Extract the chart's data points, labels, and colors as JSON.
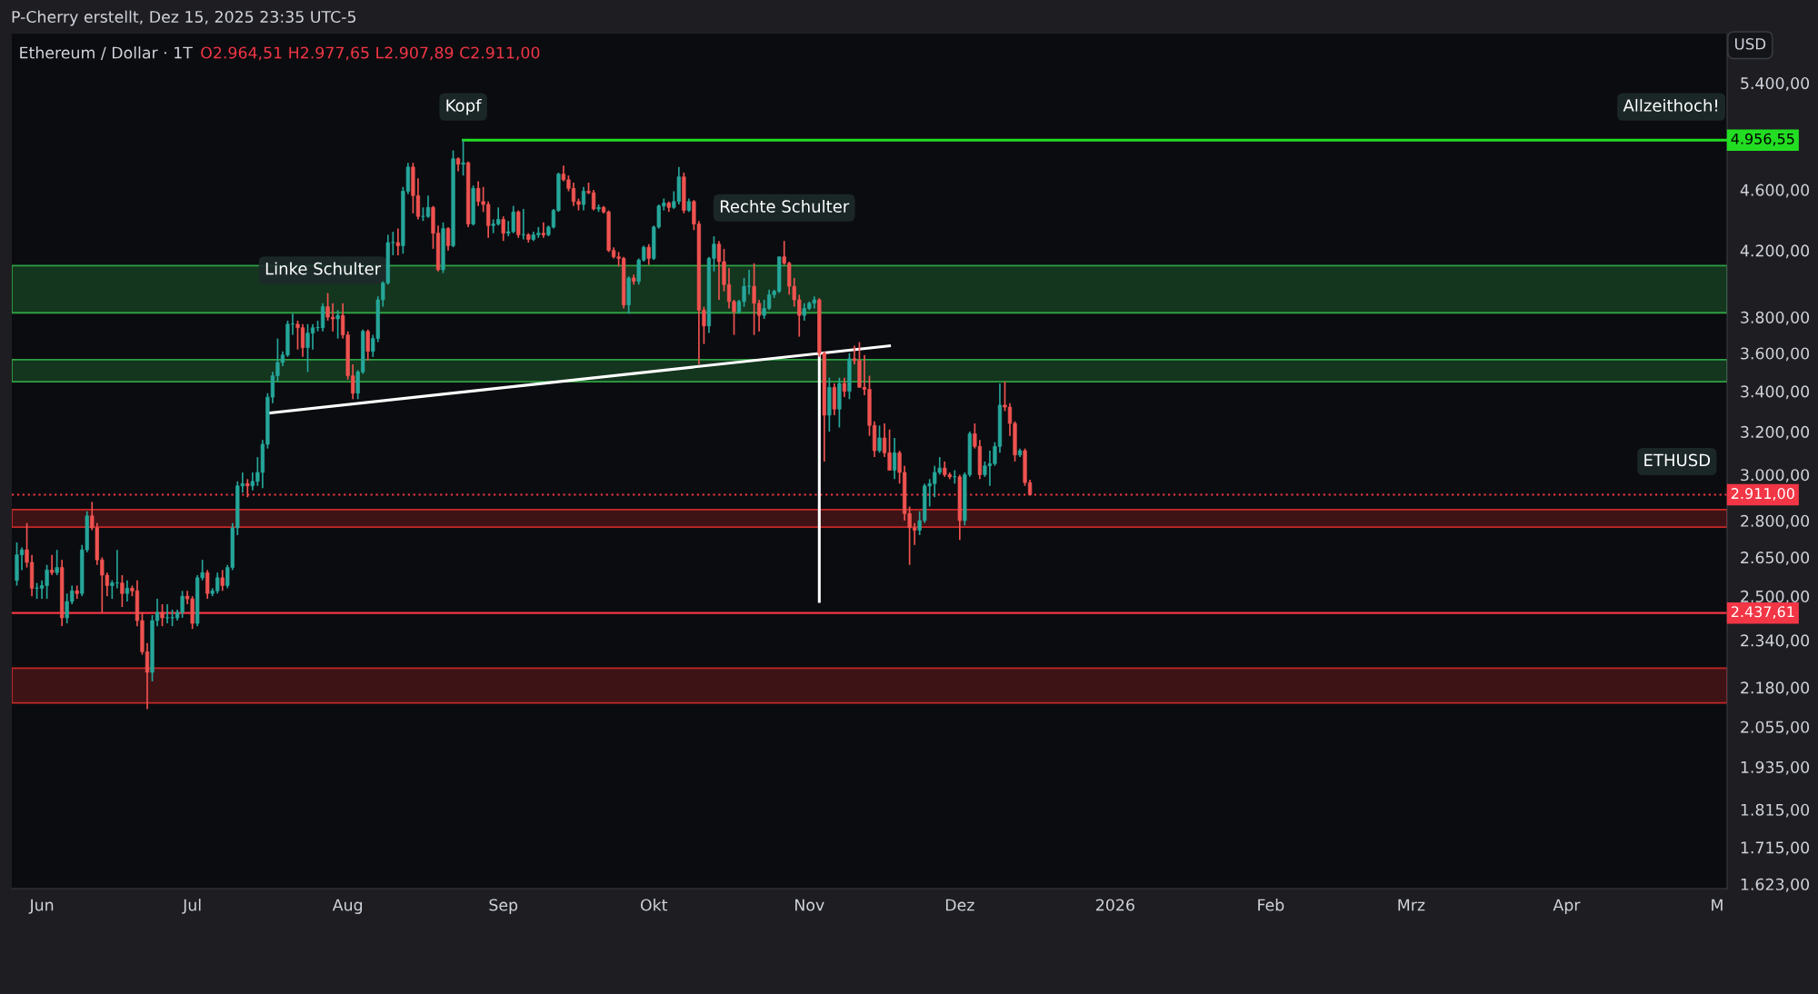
{
  "chart_data": {
    "type": "candlestick",
    "title": "Ethereum / Dollar · 1T",
    "subtitle": "O2.964,51 H2.977,65 L2.907,89 C2.911,00",
    "ylabel": "USD",
    "log": true,
    "grid": false,
    "legend": false,
    "colors": [
      "#26a69a",
      "#26a69a",
      "#ef5350",
      "#ef5350",
      "#26a69a",
      "#26a69a",
      "#26a69a",
      "#ef5350",
      "#26a69a",
      "#ef5350",
      "#26a69a",
      "#26a69a",
      "#ef5350",
      "#26a69a",
      "#26a69a",
      "#ef5350",
      "#ef5350",
      "#ef5350",
      "#ef5350",
      "#26a69a",
      "#26a69a",
      "#ef5350",
      "#26a69a",
      "#ef5350",
      "#ef5350",
      "#ef5350",
      "#ef5350",
      "#26a69a",
      "#26a69a",
      "#ef5350",
      "#26a69a",
      "#26a69a",
      "#26a69a",
      "#26a69a",
      "#ef5350",
      "#ef5350",
      "#26a69a",
      "#26a69a",
      "#ef5350",
      "#26a69a",
      "#26a69a",
      "#ef5350",
      "#26a69a",
      "#26a69a",
      "#26a69a",
      "#26a69a",
      "#ef5350",
      "#26a69a",
      "#26a69a",
      "#26a69a",
      "#26a69a",
      "#26a69a",
      "#26a69a",
      "#26a69a",
      "#26a69a",
      "#26a69a",
      "#ef5350",
      "#ef5350",
      "#26a69a",
      "#26a69a",
      "#26a69a",
      "#26a69a",
      "#ef5350",
      "#ef5350",
      "#26a69a",
      "#ef5350",
      "#ef5350",
      "#ef5350",
      "#26a69a",
      "#26a69a",
      "#ef5350",
      "#26a69a",
      "#26a69a",
      "#26a69a",
      "#26a69a",
      "#26a69a",
      "#ef5350",
      "#26a69a",
      "#26a69a",
      "#ef5350",
      "#ef5350",
      "#26a69a",
      "#26a69a",
      "#ef5350",
      "#ef5350",
      "#26a69a",
      "#ef5350",
      "#26a69a",
      "#ef5350",
      "#26a69a",
      "#ef5350",
      "#26a69a",
      "#ef5350",
      "#ef5350",
      "#ef5350",
      "#26a69a",
      "#26a69a",
      "#ef5350",
      "#26a69a",
      "#26a69a",
      "#ef5350",
      "#26a69a",
      "#ef5350",
      "#26a69a",
      "#26a69a",
      "#ef5350",
      "#26a69a",
      "#26a69a",
      "#26a69a",
      "#ef5350",
      "#ef5350",
      "#ef5350",
      "#ef5350",
      "#26a69a",
      "#ef5350",
      "#ef5350",
      "#26a69a",
      "#ef5350",
      "#ef5350",
      "#ef5350",
      "#ef5350",
      "#ef5350",
      "#26a69a",
      "#ef5350",
      "#26a69a",
      "#26a69a",
      "#ef5350",
      "#26a69a",
      "#26a69a",
      "#26a69a",
      "#ef5350",
      "#26a69a",
      "#26a69a",
      "#ef5350",
      "#26a69a",
      "#ef5350",
      "#ef5350",
      "#ef5350",
      "#26a69a",
      "#26a69a",
      "#ef5350",
      "#ef5350",
      "#ef5350",
      "#ef5350",
      "#26a69a",
      "#26a69a",
      "#26a69a",
      "#ef5350",
      "#ef5350",
      "#26a69a",
      "#26a69a",
      "#26a69a",
      "#26a69a",
      "#ef5350",
      "#ef5350",
      "#ef5350",
      "#ef5350",
      "#26a69a",
      "#26a69a",
      "#26a69a",
      "#ef5350",
      "#ef5350",
      "#26a69a",
      "#ef5350",
      "#26a69a",
      "#ef5350",
      "#26a69a",
      "#ef5350",
      "#ef5350",
      "#ef5350",
      "#ef5350",
      "#ef5350",
      "#26a69a",
      "#ef5350",
      "#ef5350",
      "#26a69a",
      "#ef5350",
      "#ef5350",
      "#ef5350",
      "#ef5350",
      "#26a69a",
      "#26a69a",
      "#26a69a",
      "#26a69a",
      "#26a69a",
      "#ef5350",
      "#ef5350",
      "#26a69a",
      "#ef5350",
      "#26a69a",
      "#26a69a",
      "#ef5350",
      "#ef5350",
      "#26a69a",
      "#26a69a",
      "#26a69a",
      "#26a69a",
      "#ef5350",
      "#ef5350",
      "#ef5350",
      "#26a69a",
      "#ef5350",
      "#ef5350"
    ],
    "xlim": [
      "2025-05-26",
      "2026-05-03"
    ],
    "xticks": [
      {
        "value": "2025-06-01",
        "label": "Jun"
      },
      {
        "value": "2025-07-01",
        "label": "Jul"
      },
      {
        "value": "2025-08-01",
        "label": "Aug"
      },
      {
        "value": "2025-09-01",
        "label": "Sep"
      },
      {
        "value": "2025-10-01",
        "label": "Okt"
      },
      {
        "value": "2025-11-01",
        "label": "Nov"
      },
      {
        "value": "2025-12-01",
        "label": "Dez"
      },
      {
        "value": "2026-01-01",
        "label": "2026"
      },
      {
        "value": "2026-02-01",
        "label": "Feb"
      },
      {
        "value": "2026-03-01",
        "label": "Mrz"
      },
      {
        "value": "2026-04-01",
        "label": "Apr"
      },
      {
        "value": "2026-05-01",
        "label": "M"
      }
    ],
    "ylim": [
      1612,
      5815
    ],
    "yticks": [
      {
        "value": 1623,
        "label": "1.623,00"
      },
      {
        "value": 1715,
        "label": "1.715,00"
      },
      {
        "value": 1815,
        "label": "1.815,00"
      },
      {
        "value": 1935,
        "label": "1.935,00"
      },
      {
        "value": 2055,
        "label": "2.055,00"
      },
      {
        "value": 2180,
        "label": "2.180,00"
      },
      {
        "value": 2340,
        "label": "2.340,00"
      },
      {
        "value": 2500,
        "label": "2.500,00"
      },
      {
        "value": 2650,
        "label": "2.650,00"
      },
      {
        "value": 2800,
        "label": "2.800,00"
      },
      {
        "value": 3000,
        "label": "3.000,00"
      },
      {
        "value": 3200,
        "label": "3.200,00"
      },
      {
        "value": 3400,
        "label": "3.400,00"
      },
      {
        "value": 3600,
        "label": "3.600,00"
      },
      {
        "value": 3800,
        "label": "3.800,00"
      },
      {
        "value": 4200,
        "label": "4.200,00"
      },
      {
        "value": 4600,
        "label": "4.600,00"
      },
      {
        "value": 5400,
        "label": "5.400,00"
      }
    ],
    "x": [
      "2025-05-27",
      "2025-05-28",
      "2025-05-29",
      "2025-05-30",
      "2025-05-31",
      "2025-06-01",
      "2025-06-02",
      "2025-06-03",
      "2025-06-04",
      "2025-06-05",
      "2025-06-06",
      "2025-06-07",
      "2025-06-08",
      "2025-06-09",
      "2025-06-10",
      "2025-06-11",
      "2025-06-12",
      "2025-06-13",
      "2025-06-14",
      "2025-06-15",
      "2025-06-16",
      "2025-06-17",
      "2025-06-18",
      "2025-06-19",
      "2025-06-20",
      "2025-06-21",
      "2025-06-22",
      "2025-06-23",
      "2025-06-24",
      "2025-06-25",
      "2025-06-26",
      "2025-06-27",
      "2025-06-28",
      "2025-06-29",
      "2025-06-30",
      "2025-07-01",
      "2025-07-02",
      "2025-07-03",
      "2025-07-04",
      "2025-07-05",
      "2025-07-06",
      "2025-07-07",
      "2025-07-08",
      "2025-07-09",
      "2025-07-10",
      "2025-07-11",
      "2025-07-12",
      "2025-07-13",
      "2025-07-14",
      "2025-07-15",
      "2025-07-16",
      "2025-07-17",
      "2025-07-18",
      "2025-07-19",
      "2025-07-20",
      "2025-07-21",
      "2025-07-22",
      "2025-07-23",
      "2025-07-24",
      "2025-07-25",
      "2025-07-26",
      "2025-07-27",
      "2025-07-28",
      "2025-07-29",
      "2025-07-30",
      "2025-07-31",
      "2025-08-01",
      "2025-08-02",
      "2025-08-03",
      "2025-08-04",
      "2025-08-05",
      "2025-08-06",
      "2025-08-07",
      "2025-08-08",
      "2025-08-09",
      "2025-08-10",
      "2025-08-11",
      "2025-08-12",
      "2025-08-13",
      "2025-08-14",
      "2025-08-15",
      "2025-08-16",
      "2025-08-17",
      "2025-08-18",
      "2025-08-19",
      "2025-08-20",
      "2025-08-21",
      "2025-08-22",
      "2025-08-23",
      "2025-08-24",
      "2025-08-25",
      "2025-08-26",
      "2025-08-27",
      "2025-08-28",
      "2025-08-29",
      "2025-08-30",
      "2025-08-31",
      "2025-09-01",
      "2025-09-02",
      "2025-09-03",
      "2025-09-04",
      "2025-09-05",
      "2025-09-06",
      "2025-09-07",
      "2025-09-08",
      "2025-09-09",
      "2025-09-10",
      "2025-09-11",
      "2025-09-12",
      "2025-09-13",
      "2025-09-14",
      "2025-09-15",
      "2025-09-16",
      "2025-09-17",
      "2025-09-18",
      "2025-09-19",
      "2025-09-20",
      "2025-09-21",
      "2025-09-22",
      "2025-09-23",
      "2025-09-24",
      "2025-09-25",
      "2025-09-26",
      "2025-09-27",
      "2025-09-28",
      "2025-09-29",
      "2025-09-30",
      "2025-10-01",
      "2025-10-02",
      "2025-10-03",
      "2025-10-04",
      "2025-10-05",
      "2025-10-06",
      "2025-10-07",
      "2025-10-08",
      "2025-10-09",
      "2025-10-10",
      "2025-10-11",
      "2025-10-12",
      "2025-10-13",
      "2025-10-14",
      "2025-10-15",
      "2025-10-16",
      "2025-10-17",
      "2025-10-18",
      "2025-10-19",
      "2025-10-20",
      "2025-10-21",
      "2025-10-22",
      "2025-10-23",
      "2025-10-24",
      "2025-10-25",
      "2025-10-26",
      "2025-10-27",
      "2025-10-28",
      "2025-10-29",
      "2025-10-30",
      "2025-10-31",
      "2025-11-01",
      "2025-11-02",
      "2025-11-03",
      "2025-11-04",
      "2025-11-05",
      "2025-11-06",
      "2025-11-07",
      "2025-11-08",
      "2025-11-09",
      "2025-11-10",
      "2025-11-11",
      "2025-11-12",
      "2025-11-13",
      "2025-11-14",
      "2025-11-15",
      "2025-11-16",
      "2025-11-17",
      "2025-11-18",
      "2025-11-19",
      "2025-11-20",
      "2025-11-21",
      "2025-11-22",
      "2025-11-23",
      "2025-11-24",
      "2025-11-25",
      "2025-11-26",
      "2025-11-27",
      "2025-11-28",
      "2025-11-29",
      "2025-11-30",
      "2025-12-01",
      "2025-12-02",
      "2025-12-03",
      "2025-12-04",
      "2025-12-05",
      "2025-12-06",
      "2025-12-07",
      "2025-12-08",
      "2025-12-09",
      "2025-12-10",
      "2025-12-11",
      "2025-12-12",
      "2025-12-13",
      "2025-12-14",
      "2025-12-15"
    ],
    "ohlc": [
      [
        2560,
        2710,
        2540,
        2660
      ],
      [
        2660,
        2690,
        2600,
        2680
      ],
      [
        2680,
        2790,
        2610,
        2630
      ],
      [
        2630,
        2660,
        2500,
        2530
      ],
      [
        2530,
        2550,
        2490,
        2530
      ],
      [
        2530,
        2560,
        2490,
        2540
      ],
      [
        2540,
        2620,
        2490,
        2600
      ],
      [
        2600,
        2660,
        2580,
        2590
      ],
      [
        2590,
        2680,
        2580,
        2610
      ],
      [
        2610,
        2640,
        2390,
        2420
      ],
      [
        2420,
        2510,
        2400,
        2480
      ],
      [
        2480,
        2540,
        2470,
        2520
      ],
      [
        2520,
        2540,
        2490,
        2510
      ],
      [
        2510,
        2700,
        2500,
        2680
      ],
      [
        2680,
        2840,
        2670,
        2820
      ],
      [
        2820,
        2880,
        2760,
        2770
      ],
      [
        2770,
        2790,
        2620,
        2640
      ],
      [
        2640,
        2650,
        2440,
        2580
      ],
      [
        2580,
        2590,
        2500,
        2540
      ],
      [
        2540,
        2560,
        2490,
        2550
      ],
      [
        2550,
        2680,
        2530,
        2550
      ],
      [
        2550,
        2580,
        2460,
        2510
      ],
      [
        2510,
        2560,
        2480,
        2530
      ],
      [
        2530,
        2540,
        2500,
        2520
      ],
      [
        2520,
        2560,
        2390,
        2410
      ],
      [
        2410,
        2440,
        2290,
        2300
      ],
      [
        2300,
        2330,
        2110,
        2230
      ],
      [
        2230,
        2430,
        2200,
        2410
      ],
      [
        2410,
        2490,
        2390,
        2440
      ],
      [
        2440,
        2470,
        2390,
        2420
      ],
      [
        2420,
        2470,
        2400,
        2420
      ],
      [
        2420,
        2450,
        2390,
        2420
      ],
      [
        2420,
        2450,
        2410,
        2440
      ],
      [
        2440,
        2520,
        2420,
        2500
      ],
      [
        2500,
        2520,
        2470,
        2490
      ],
      [
        2490,
        2500,
        2380,
        2400
      ],
      [
        2400,
        2580,
        2390,
        2570
      ],
      [
        2570,
        2640,
        2560,
        2590
      ],
      [
        2590,
        2600,
        2490,
        2510
      ],
      [
        2510,
        2530,
        2500,
        2520
      ],
      [
        2520,
        2590,
        2510,
        2570
      ],
      [
        2570,
        2600,
        2520,
        2540
      ],
      [
        2540,
        2620,
        2530,
        2610
      ],
      [
        2610,
        2790,
        2600,
        2770
      ],
      [
        2770,
        2970,
        2740,
        2950
      ],
      [
        2950,
        3010,
        2920,
        2960
      ],
      [
        2960,
        2980,
        2900,
        2950
      ],
      [
        2950,
        3010,
        2930,
        2970
      ],
      [
        2970,
        3080,
        2950,
        3010
      ],
      [
        3010,
        3160,
        2940,
        3140
      ],
      [
        3140,
        3390,
        3120,
        3370
      ],
      [
        3370,
        3500,
        3340,
        3480
      ],
      [
        3480,
        3680,
        3450,
        3550
      ],
      [
        3550,
        3610,
        3530,
        3590
      ],
      [
        3590,
        3780,
        3580,
        3760
      ],
      [
        3760,
        3820,
        3700,
        3760
      ],
      [
        3760,
        3780,
        3620,
        3740
      ],
      [
        3740,
        3760,
        3580,
        3630
      ],
      [
        3630,
        3760,
        3500,
        3710
      ],
      [
        3710,
        3760,
        3620,
        3740
      ],
      [
        3740,
        3780,
        3720,
        3740
      ],
      [
        3740,
        3880,
        3720,
        3860
      ],
      [
        3860,
        3940,
        3780,
        3800
      ],
      [
        3800,
        3880,
        3720,
        3790
      ],
      [
        3790,
        3840,
        3680,
        3810
      ],
      [
        3810,
        3880,
        3680,
        3700
      ],
      [
        3700,
        3720,
        3460,
        3480
      ],
      [
        3480,
        3540,
        3360,
        3390
      ],
      [
        3390,
        3510,
        3360,
        3500
      ],
      [
        3500,
        3730,
        3490,
        3720
      ],
      [
        3720,
        3730,
        3560,
        3610
      ],
      [
        3610,
        3700,
        3580,
        3680
      ],
      [
        3680,
        3920,
        3660,
        3900
      ],
      [
        3900,
        4010,
        3860,
        4000
      ],
      [
        4000,
        4300,
        3990,
        4250
      ],
      [
        4250,
        4320,
        4170,
        4250
      ],
      [
        4250,
        4340,
        4170,
        4230
      ],
      [
        4230,
        4620,
        4180,
        4590
      ],
      [
        4590,
        4790,
        4570,
        4760
      ],
      [
        4760,
        4790,
        4440,
        4560
      ],
      [
        4560,
        4680,
        4400,
        4420
      ],
      [
        4420,
        4480,
        4390,
        4420
      ],
      [
        4420,
        4560,
        4410,
        4480
      ],
      [
        4480,
        4490,
        4210,
        4310
      ],
      [
        4310,
        4360,
        4070,
        4080
      ],
      [
        4080,
        4380,
        4060,
        4340
      ],
      [
        4340,
        4350,
        4200,
        4230
      ],
      [
        4230,
        4880,
        4220,
        4820
      ],
      [
        4820,
        4830,
        4730,
        4780
      ],
      [
        4780,
        4956.55,
        4700,
        4790
      ],
      [
        4790,
        4800,
        4350,
        4370
      ],
      [
        4370,
        4630,
        4360,
        4610
      ],
      [
        4610,
        4660,
        4490,
        4520
      ],
      [
        4520,
        4620,
        4450,
        4500
      ],
      [
        4500,
        4520,
        4280,
        4360
      ],
      [
        4360,
        4400,
        4310,
        4370
      ],
      [
        4370,
        4480,
        4360,
        4400
      ],
      [
        4400,
        4420,
        4260,
        4310
      ],
      [
        4310,
        4390,
        4290,
        4320
      ],
      [
        4320,
        4490,
        4310,
        4450
      ],
      [
        4450,
        4460,
        4280,
        4300
      ],
      [
        4300,
        4470,
        4270,
        4300
      ],
      [
        4300,
        4310,
        4250,
        4270
      ],
      [
        4270,
        4320,
        4260,
        4300
      ],
      [
        4300,
        4350,
        4280,
        4310
      ],
      [
        4310,
        4380,
        4280,
        4300
      ],
      [
        4300,
        4360,
        4290,
        4350
      ],
      [
        4350,
        4470,
        4340,
        4460
      ],
      [
        4460,
        4720,
        4450,
        4710
      ],
      [
        4710,
        4770,
        4660,
        4670
      ],
      [
        4670,
        4700,
        4590,
        4610
      ],
      [
        4610,
        4650,
        4490,
        4520
      ],
      [
        4520,
        4540,
        4460,
        4500
      ],
      [
        4500,
        4620,
        4460,
        4590
      ],
      [
        4590,
        4650,
        4570,
        4580
      ],
      [
        4580,
        4600,
        4460,
        4470
      ],
      [
        4470,
        4500,
        4450,
        4480
      ],
      [
        4480,
        4490,
        4440,
        4450
      ],
      [
        4450,
        4460,
        4190,
        4200
      ],
      [
        4200,
        4220,
        4150,
        4160
      ],
      [
        4160,
        4190,
        4100,
        4150
      ],
      [
        4150,
        4160,
        3850,
        3870
      ],
      [
        3870,
        4040,
        3820,
        4030
      ],
      [
        4030,
        4050,
        3990,
        4010
      ],
      [
        4010,
        4150,
        3990,
        4140
      ],
      [
        4140,
        4230,
        4130,
        4220
      ],
      [
        4220,
        4240,
        4110,
        4150
      ],
      [
        4150,
        4360,
        4140,
        4350
      ],
      [
        4350,
        4500,
        4340,
        4490
      ],
      [
        4490,
        4540,
        4460,
        4510
      ],
      [
        4510,
        4520,
        4450,
        4480
      ],
      [
        4480,
        4590,
        4470,
        4520
      ],
      [
        4520,
        4760,
        4500,
        4690
      ],
      [
        4690,
        4720,
        4440,
        4460
      ],
      [
        4460,
        4540,
        4450,
        4520
      ],
      [
        4520,
        4530,
        4330,
        4370
      ],
      [
        4370,
        4390,
        3540,
        3840
      ],
      [
        3840,
        3860,
        3650,
        3750
      ],
      [
        3750,
        4160,
        3710,
        4150
      ],
      [
        4150,
        4290,
        4070,
        4240
      ],
      [
        4240,
        4260,
        3900,
        4130
      ],
      [
        4130,
        4210,
        3950,
        3990
      ],
      [
        3990,
        4090,
        3850,
        3890
      ],
      [
        3890,
        3900,
        3700,
        3830
      ],
      [
        3830,
        3900,
        3820,
        3890
      ],
      [
        3890,
        4030,
        3860,
        3980
      ],
      [
        3980,
        4080,
        3930,
        3980
      ],
      [
        3980,
        4120,
        3700,
        3880
      ],
      [
        3880,
        3900,
        3720,
        3810
      ],
      [
        3810,
        3900,
        3790,
        3850
      ],
      [
        3850,
        3960,
        3840,
        3930
      ],
      [
        3930,
        3960,
        3910,
        3950
      ],
      [
        3950,
        4160,
        3940,
        4160
      ],
      [
        4160,
        4260,
        4110,
        4120
      ],
      [
        4120,
        4130,
        3930,
        3980
      ],
      [
        3980,
        4030,
        3860,
        3900
      ],
      [
        3900,
        3930,
        3690,
        3810
      ],
      [
        3810,
        3880,
        3780,
        3850
      ],
      [
        3850,
        3890,
        3840,
        3880
      ],
      [
        3880,
        3920,
        3850,
        3900
      ],
      [
        3900,
        3910,
        3580,
        3600
      ],
      [
        3600,
        3610,
        3060,
        3280
      ],
      [
        3280,
        3470,
        3200,
        3420
      ],
      [
        3420,
        3440,
        3280,
        3310
      ],
      [
        3310,
        3470,
        3220,
        3440
      ],
      [
        3440,
        3470,
        3370,
        3400
      ],
      [
        3400,
        3600,
        3360,
        3570
      ],
      [
        3570,
        3640,
        3540,
        3560
      ],
      [
        3560,
        3660,
        3420,
        3420
      ],
      [
        3420,
        3590,
        3380,
        3410
      ],
      [
        3410,
        3480,
        3180,
        3230
      ],
      [
        3230,
        3250,
        3080,
        3110
      ],
      [
        3110,
        3230,
        3100,
        3170
      ],
      [
        3170,
        3240,
        3080,
        3100
      ],
      [
        3100,
        3210,
        3020,
        3020
      ],
      [
        3020,
        3170,
        2980,
        3100
      ],
      [
        3100,
        3110,
        2960,
        3010
      ],
      [
        3010,
        3040,
        2800,
        2830
      ],
      [
        2830,
        2860,
        2620,
        2770
      ],
      [
        2770,
        2790,
        2700,
        2760
      ],
      [
        2760,
        2840,
        2740,
        2800
      ],
      [
        2800,
        2960,
        2790,
        2950
      ],
      [
        2950,
        2980,
        2860,
        2960
      ],
      [
        2960,
        3040,
        2900,
        3010
      ],
      [
        3010,
        3080,
        3000,
        3030
      ],
      [
        3030,
        3060,
        2990,
        3000
      ],
      [
        3000,
        3010,
        2980,
        2990
      ],
      [
        2990,
        3020,
        2960,
        2990
      ],
      [
        2990,
        3000,
        2720,
        2800
      ],
      [
        2800,
        3010,
        2780,
        3000
      ],
      [
        3000,
        3200,
        2990,
        3190
      ],
      [
        3190,
        3240,
        3120,
        3130
      ],
      [
        3130,
        3160,
        2980,
        3000
      ],
      [
        3000,
        3060,
        2990,
        3040
      ],
      [
        3040,
        3110,
        2950,
        3050
      ],
      [
        3050,
        3150,
        3040,
        3130
      ],
      [
        3130,
        3440,
        3100,
        3330
      ],
      [
        3330,
        3450,
        3300,
        3320
      ],
      [
        3320,
        3340,
        3180,
        3240
      ],
      [
        3240,
        3250,
        3060,
        3090
      ],
      [
        3090,
        3120,
        3080,
        3110
      ],
      [
        3110,
        3120,
        2950,
        2964.51
      ],
      [
        2964.51,
        2977.65,
        2907.89,
        2911.0
      ]
    ],
    "series": [
      {
        "type": "line",
        "x": [
          "2025-07-16",
          "2025-11-17"
        ],
        "values": [
          3290,
          3640
        ],
        "color": "#ffffff"
      },
      {
        "type": "line",
        "x": [
          "2025-11-03",
          "2025-11-03"
        ],
        "values": [
          3600,
          2480
        ],
        "color": "#ffffff"
      },
      {
        "type": "line",
        "x": [
          "2025-08-24",
          "2026-05-03"
        ],
        "values": [
          4956.55,
          4956.55
        ],
        "color": "#22dd22",
        "value_labels": [
          null,
          "4.956,55"
        ]
      }
    ],
    "bands": [
      {
        "axis": "y",
        "from": 3825,
        "to": 4105,
        "color": "#2ea043"
      },
      {
        "axis": "y",
        "from": 3449,
        "to": 3565,
        "color": "#2ea043"
      },
      {
        "axis": "y",
        "from": 2773,
        "to": 2847,
        "color": "#c62828"
      },
      {
        "axis": "y",
        "from": 2130,
        "to": 2244,
        "color": "#c62828"
      }
    ],
    "ref_lines": [
      {
        "axis": "y",
        "value": 2437.61,
        "label": "2.437,61",
        "color": "#f23645",
        "line_style": "solid"
      },
      {
        "axis": "y",
        "value": 2911.0,
        "label": "2.911,00",
        "color": "#f23645",
        "line_style": "dotted"
      }
    ],
    "annotations": [
      "P-Cherry erstellt, Dez 15, 2025 23:35 UTC-5",
      {
        "text": "Kopf",
        "x": "2025-08-24",
        "y": 4956.55
      },
      {
        "text": "Linke Schulter",
        "x": "2025-07-27",
        "y": 3880
      },
      {
        "text": "Rechte Schulter",
        "x": "2025-10-27",
        "y": 4260
      },
      {
        "text": "Allzeithoch!",
        "x": "2026-05-03",
        "y": 4956.55
      },
      {
        "text": "ETHUSD",
        "x": "2026-04-23",
        "y": 2911.0
      }
    ]
  }
}
